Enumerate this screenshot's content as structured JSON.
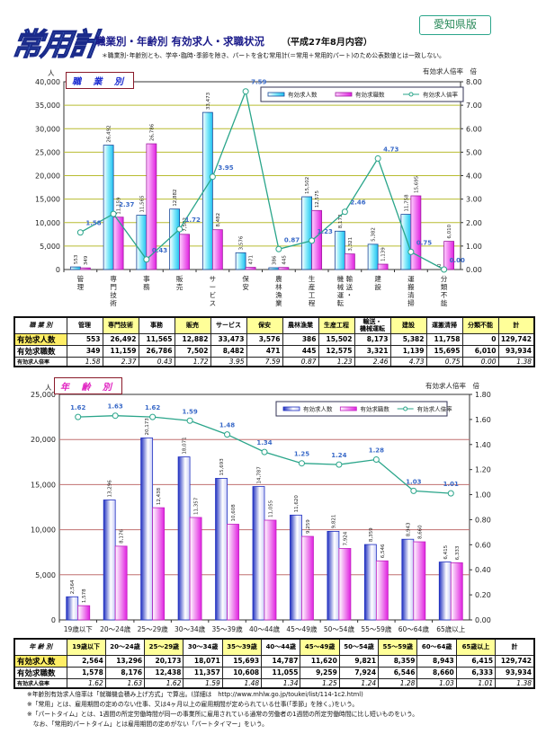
{
  "header": {
    "logo": "常用計",
    "title": "職業別・年齢別 有効求人・求職状況",
    "subtitle": "（平成27年8月内容）",
    "badge": "愛知県版",
    "note": "＊職業別･年齢別とも、学卒･臨時･季節を除き、パートを含む常用計(＝常用＋常用的パート)のため公表数値とは一致しない。"
  },
  "chart_data": [
    {
      "type": "bar",
      "title": "職 業 別",
      "ylabel": "人",
      "y2label": "有効求人倍率　倍",
      "ylim": [
        0,
        40000
      ],
      "y2lim": [
        0,
        8
      ],
      "yticks": [
        "0",
        "5,000",
        "10,000",
        "15,000",
        "20,000",
        "25,000",
        "30,000",
        "35,000",
        "40,000"
      ],
      "y2ticks": [
        "0.00",
        "1.00",
        "2.00",
        "3.00",
        "4.00",
        "5.00",
        "6.00",
        "7.00",
        "8.00"
      ],
      "grid": true,
      "legend_position": "top-right",
      "categories": [
        "管理",
        "専門技術",
        "事務",
        "販売",
        "サービス",
        "保安",
        "農林漁業",
        "生産工程",
        "輸送・機械運転",
        "建設",
        "運搬清掃",
        "分類不能"
      ],
      "series": [
        {
          "name": "有効求人数",
          "type": "bar",
          "axis": "left",
          "values": [
            553,
            26492,
            11565,
            12882,
            33473,
            3576,
            386,
            15502,
            8173,
            5382,
            11758,
            0
          ]
        },
        {
          "name": "有効求職数",
          "type": "bar",
          "axis": "left",
          "values": [
            349,
            11159,
            26786,
            7502,
            8482,
            471,
            445,
            12575,
            3321,
            1139,
            15695,
            6010
          ]
        },
        {
          "name": "有効求人倍率",
          "type": "line",
          "axis": "right",
          "values": [
            1.58,
            2.37,
            0.43,
            1.72,
            3.95,
            7.59,
            0.87,
            1.23,
            2.46,
            4.73,
            0.75,
            0.0
          ]
        }
      ]
    },
    {
      "type": "bar",
      "title": "年 齢 別",
      "ylabel": "人",
      "y2label": "有効求人倍率　倍",
      "ylim": [
        0,
        25000
      ],
      "y2lim": [
        0,
        1.8
      ],
      "yticks": [
        "0",
        "5,000",
        "10,000",
        "15,000",
        "20,000",
        "25,000"
      ],
      "y2ticks": [
        "0.00",
        "0.20",
        "0.40",
        "0.60",
        "0.80",
        "1.00",
        "1.20",
        "1.40",
        "1.60",
        "1.80"
      ],
      "grid": true,
      "legend_position": "top-right",
      "categories": [
        "19歳以下",
        "20～24歳",
        "25～29歳",
        "30～34歳",
        "35～39歳",
        "40～44歳",
        "45～49歳",
        "50～54歳",
        "55～59歳",
        "60～64歳",
        "65歳以上"
      ],
      "series": [
        {
          "name": "有効求人数",
          "type": "bar",
          "axis": "left",
          "values": [
            2564,
            13296,
            20173,
            18071,
            15693,
            14787,
            11620,
            9821,
            8359,
            8943,
            6415
          ]
        },
        {
          "name": "有効求職数",
          "type": "bar",
          "axis": "left",
          "values": [
            1578,
            8176,
            12438,
            11357,
            10608,
            11055,
            9259,
            7924,
            6546,
            8660,
            6333
          ]
        },
        {
          "name": "有効求人倍率",
          "type": "line",
          "axis": "right",
          "values": [
            1.62,
            1.63,
            1.62,
            1.59,
            1.48,
            1.34,
            1.25,
            1.24,
            1.28,
            1.03,
            1.01
          ]
        }
      ]
    }
  ],
  "tables": {
    "occupation": {
      "corner": "職 業 別",
      "headers": [
        "管理",
        "専門技術",
        "事務",
        "販売",
        "サービス",
        "保安",
        "農林漁業",
        "生産工程",
        "輸送・\n機械運転",
        "建設",
        "運搬清掃",
        "分類不能",
        "計"
      ],
      "rows": [
        {
          "label": "有効求人数",
          "cells": [
            "553",
            "26,492",
            "11,565",
            "12,882",
            "33,473",
            "3,576",
            "386",
            "15,502",
            "8,173",
            "5,382",
            "11,758",
            "0",
            "129,742"
          ]
        },
        {
          "label": "有効求職数",
          "cells": [
            "349",
            "11,159",
            "26,786",
            "7,502",
            "8,482",
            "471",
            "445",
            "12,575",
            "3,321",
            "1,139",
            "15,695",
            "6,010",
            "93,934"
          ]
        },
        {
          "label": "有効求人倍率",
          "cells": [
            "1.58",
            "2.37",
            "0.43",
            "1.72",
            "3.95",
            "7.59",
            "0.87",
            "1.23",
            "2.46",
            "4.73",
            "0.75",
            "0.00",
            "1.38"
          ]
        }
      ]
    },
    "age": {
      "corner": "年 齢 別",
      "headers": [
        "19歳以下",
        "20～24歳",
        "25～29歳",
        "30～34歳",
        "35～39歳",
        "40～44歳",
        "45～49歳",
        "50～54歳",
        "55～59歳",
        "60～64歳",
        "65歳以上",
        "計"
      ],
      "rows": [
        {
          "label": "有効求人数",
          "cells": [
            "2,564",
            "13,296",
            "20,173",
            "18,071",
            "15,693",
            "14,787",
            "11,620",
            "9,821",
            "8,359",
            "8,943",
            "6,415",
            "129,742"
          ]
        },
        {
          "label": "有効求職数",
          "cells": [
            "1,578",
            "8,176",
            "12,438",
            "11,357",
            "10,608",
            "11,055",
            "9,259",
            "7,924",
            "6,546",
            "8,660",
            "6,333",
            "93,934"
          ]
        },
        {
          "label": "有効求人倍率",
          "cells": [
            "1.62",
            "1.63",
            "1.62",
            "1.59",
            "1.48",
            "1.34",
            "1.25",
            "1.24",
            "1.28",
            "1.03",
            "1.01",
            "1.38"
          ]
        }
      ]
    }
  },
  "footnotes": [
    "※年齢別有効求人倍率は「就職機会積み上げ方式」で算出。(詳細は　http://www.mhlw.go.jp/toukei/list/114-1c2.html)",
    "※「常用」とは、雇用期間の定めのない仕事、又は4ヶ月以上の雇用期間が定められている仕事(「季節」を除く。)をいう。",
    "※「パートタイム」とは、1週間の所定労働時間が同一の事業所に雇用されている通常の労働者の1週間の所定労働時間に比し短いものをいう。",
    "　なお、「常用的パートタイム」とは雇用期間の定めがない「パートタイマー」をいう。"
  ],
  "colors": {
    "bar1_chart1": "#30c8f0",
    "bar2": "#e020e0",
    "bar1_chart2": "#2a3ad0",
    "line": "#2aa58a",
    "label": "#3a6ac8"
  }
}
